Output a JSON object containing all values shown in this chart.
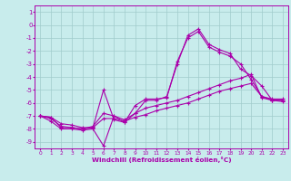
{
  "xlabel": "Windchill (Refroidissement éolien,°C)",
  "background_color": "#c8ecec",
  "grid_color": "#a0cccc",
  "line_color": "#aa00aa",
  "x": [
    0,
    1,
    2,
    3,
    4,
    5,
    6,
    7,
    8,
    9,
    10,
    11,
    12,
    13,
    14,
    15,
    16,
    17,
    18,
    19,
    20,
    21,
    22,
    23
  ],
  "line1": [
    -7.0,
    -7.1,
    -7.9,
    -7.9,
    -8.0,
    -7.9,
    -5.0,
    -7.3,
    -7.5,
    -6.2,
    -5.7,
    -5.7,
    -5.6,
    -2.8,
    -1.0,
    -0.5,
    -1.7,
    -2.1,
    -2.4,
    -3.0,
    -4.2,
    -5.5,
    -5.8,
    -5.8
  ],
  "line2": [
    -7.0,
    -7.4,
    -8.0,
    -8.0,
    -8.1,
    -8.0,
    -9.3,
    -7.0,
    -7.5,
    -6.8,
    -5.8,
    -5.8,
    -5.5,
    -3.0,
    -0.8,
    -0.3,
    -1.5,
    -1.9,
    -2.2,
    -3.4,
    -3.9,
    -4.7,
    -5.8,
    -5.9
  ],
  "line3": [
    -7.0,
    -7.2,
    -7.8,
    -7.9,
    -8.0,
    -7.8,
    -6.8,
    -7.0,
    -7.3,
    -6.8,
    -6.4,
    -6.2,
    -6.0,
    -5.8,
    -5.5,
    -5.2,
    -4.9,
    -4.6,
    -4.3,
    -4.1,
    -3.8,
    -5.6,
    -5.8,
    -5.8
  ],
  "line4": [
    -7.0,
    -7.1,
    -7.6,
    -7.7,
    -7.9,
    -7.9,
    -7.2,
    -7.2,
    -7.4,
    -7.1,
    -6.9,
    -6.6,
    -6.4,
    -6.2,
    -6.0,
    -5.7,
    -5.4,
    -5.1,
    -4.9,
    -4.7,
    -4.5,
    -5.5,
    -5.7,
    -5.7
  ],
  "xlim": [
    -0.5,
    23.5
  ],
  "ylim": [
    -9.5,
    1.5
  ],
  "yticks": [
    1,
    0,
    -1,
    -2,
    -3,
    -4,
    -5,
    -6,
    -7,
    -8,
    -9
  ],
  "xticks": [
    0,
    1,
    2,
    3,
    4,
    5,
    6,
    7,
    8,
    9,
    10,
    11,
    12,
    13,
    14,
    15,
    16,
    17,
    18,
    19,
    20,
    21,
    22,
    23
  ]
}
